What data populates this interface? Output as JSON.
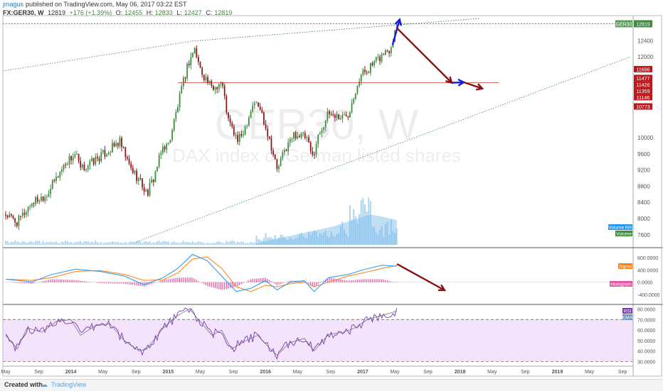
{
  "header": {
    "author": "jmagus",
    "published_text": "published on TradingView.com, May 06, 2017 03:22 EST",
    "symbol": "FX:GER30, W",
    "last": "12819",
    "change": "+176 (+1.39%)",
    "o_label": "O:",
    "o": "12455",
    "h_label": "H:",
    "h": "12833",
    "l_label": "L:",
    "l": "12427",
    "c_label": "C:",
    "c": "12819"
  },
  "watermark": {
    "title": "GER30, W",
    "subtitle": "DAX index of German listed shares"
  },
  "footer": {
    "created_with": "Created with",
    "brand": "TradingView"
  },
  "colors": {
    "up": "#3d8c40",
    "down": "#8b1a1a",
    "macd": "#2196f3",
    "signal": "#ff7f0e",
    "histogram": "#e056a0",
    "rsi": "#7b3ab8",
    "arrow_red": "#8b1010",
    "arrow_blue": "#1a1ae6",
    "volume": "#74b9e8",
    "rsi_band": "#f3e4fb"
  },
  "chart_data": [
    {
      "type": "candlestick",
      "name": "price",
      "time_axis": [
        "May",
        "Sep",
        "2014",
        "May",
        "Sep",
        "2015",
        "May",
        "Sep",
        "2016",
        "May",
        "Sep",
        "2017",
        "May",
        "Sep",
        "2018",
        "May",
        "Sep",
        "2019",
        "May",
        "Sep"
      ],
      "y_ticks": [
        7600,
        8000,
        8400,
        8800,
        9200,
        9600,
        10000,
        10400,
        10800,
        11200,
        11600,
        12000,
        12400
      ],
      "y_tick_labels": [
        "7600",
        "8000",
        "8400",
        "8800",
        "9200",
        "9600",
        "10000",
        "",
        "",
        "",
        "",
        "12000",
        "12400"
      ],
      "ylim": [
        7350,
        12950
      ],
      "close_path": [
        [
          2013.33,
          8100
        ],
        [
          2013.45,
          7900
        ],
        [
          2013.6,
          8400
        ],
        [
          2013.75,
          8600
        ],
        [
          2013.95,
          9400
        ],
        [
          2014.05,
          9600
        ],
        [
          2014.1,
          9200
        ],
        [
          2014.22,
          9400
        ],
        [
          2014.4,
          9700
        ],
        [
          2014.5,
          9900
        ],
        [
          2014.6,
          9300
        ],
        [
          2014.72,
          8900
        ],
        [
          2014.78,
          8600
        ],
        [
          2014.85,
          9000
        ],
        [
          2014.95,
          9800
        ],
        [
          2015.0,
          9800
        ],
        [
          2015.1,
          10800
        ],
        [
          2015.2,
          11800
        ],
        [
          2015.27,
          12200
        ],
        [
          2015.33,
          11700
        ],
        [
          2015.45,
          11200
        ],
        [
          2015.55,
          11400
        ],
        [
          2015.62,
          10400
        ],
        [
          2015.72,
          9900
        ],
        [
          2015.78,
          10200
        ],
        [
          2015.88,
          10900
        ],
        [
          2015.95,
          10700
        ],
        [
          2016.05,
          9900
        ],
        [
          2016.12,
          9200
        ],
        [
          2016.2,
          9700
        ],
        [
          2016.3,
          10100
        ],
        [
          2016.42,
          10000
        ],
        [
          2016.48,
          9500
        ],
        [
          2016.55,
          10100
        ],
        [
          2016.65,
          10600
        ],
        [
          2016.78,
          10500
        ],
        [
          2016.85,
          10600
        ],
        [
          2016.95,
          11400
        ],
        [
          2017.0,
          11600
        ],
        [
          2017.15,
          11900
        ],
        [
          2017.22,
          12100
        ],
        [
          2017.28,
          12200
        ],
        [
          2017.35,
          12819
        ]
      ],
      "current_price_label": "GER30",
      "current_price": "12819",
      "level_labels": [
        "11696",
        "11477",
        "11426",
        "11359",
        "11146",
        "10773"
      ],
      "level_values": [
        11696,
        11477,
        11426,
        11359,
        11146,
        10773
      ],
      "horizontal_line": 11359,
      "volume_legend": [
        "Volume MA",
        "Volume"
      ]
    },
    {
      "type": "line",
      "name": "macd",
      "y_ticks": [
        800,
        400,
        0,
        -400
      ],
      "y_tick_labels": [
        "800.0000",
        "400.0000",
        "0.0000",
        "-400.0000"
      ],
      "ylim": [
        -650,
        1050
      ],
      "legend": [
        "Signal",
        "Histogram"
      ],
      "macd": [
        [
          2013.33,
          100
        ],
        [
          2013.6,
          10
        ],
        [
          2013.8,
          250
        ],
        [
          2014.05,
          420
        ],
        [
          2014.3,
          350
        ],
        [
          2014.55,
          200
        ],
        [
          2014.75,
          -80
        ],
        [
          2014.95,
          150
        ],
        [
          2015.1,
          450
        ],
        [
          2015.25,
          900
        ],
        [
          2015.4,
          700
        ],
        [
          2015.55,
          200
        ],
        [
          2015.7,
          -300
        ],
        [
          2015.85,
          -200
        ],
        [
          2016.0,
          50
        ],
        [
          2016.12,
          -250
        ],
        [
          2016.25,
          0
        ],
        [
          2016.4,
          50
        ],
        [
          2016.5,
          -300
        ],
        [
          2016.65,
          150
        ],
        [
          2016.85,
          250
        ],
        [
          2017.0,
          400
        ],
        [
          2017.2,
          550
        ],
        [
          2017.35,
          520
        ]
      ],
      "signal": [
        [
          2013.33,
          100
        ],
        [
          2013.6,
          60
        ],
        [
          2013.8,
          150
        ],
        [
          2014.05,
          350
        ],
        [
          2014.3,
          380
        ],
        [
          2014.55,
          250
        ],
        [
          2014.75,
          60
        ],
        [
          2014.95,
          80
        ],
        [
          2015.1,
          300
        ],
        [
          2015.25,
          750
        ],
        [
          2015.4,
          820
        ],
        [
          2015.55,
          450
        ],
        [
          2015.7,
          -150
        ],
        [
          2015.85,
          -300
        ],
        [
          2016.0,
          -100
        ],
        [
          2016.12,
          -150
        ],
        [
          2016.25,
          -50
        ],
        [
          2016.4,
          0
        ],
        [
          2016.5,
          -150
        ],
        [
          2016.65,
          0
        ],
        [
          2016.85,
          200
        ],
        [
          2017.0,
          300
        ],
        [
          2017.2,
          450
        ],
        [
          2017.35,
          540
        ]
      ]
    },
    {
      "type": "line",
      "name": "rsi",
      "y_ticks": [
        80,
        70,
        60,
        50,
        40,
        30
      ],
      "y_tick_labels": [
        "80.0000",
        "70.0000",
        "60.0000",
        "50.0000",
        "40.0000",
        "30.0000"
      ],
      "ylim": [
        27,
        83
      ],
      "bands": [
        30,
        70
      ],
      "legend": [
        "RSI",
        "EMA"
      ],
      "rsi": [
        [
          2013.33,
          55
        ],
        [
          2013.45,
          42
        ],
        [
          2013.55,
          62
        ],
        [
          2013.7,
          58
        ],
        [
          2013.85,
          68
        ],
        [
          2014.0,
          70
        ],
        [
          2014.1,
          55
        ],
        [
          2014.25,
          64
        ],
        [
          2014.4,
          66
        ],
        [
          2014.55,
          50
        ],
        [
          2014.7,
          40
        ],
        [
          2014.78,
          42
        ],
        [
          2014.95,
          62
        ],
        [
          2015.1,
          74
        ],
        [
          2015.22,
          80
        ],
        [
          2015.33,
          68
        ],
        [
          2015.45,
          55
        ],
        [
          2015.55,
          60
        ],
        [
          2015.65,
          42
        ],
        [
          2015.8,
          50
        ],
        [
          2015.92,
          55
        ],
        [
          2016.05,
          42
        ],
        [
          2016.12,
          36
        ],
        [
          2016.25,
          48
        ],
        [
          2016.4,
          52
        ],
        [
          2016.5,
          40
        ],
        [
          2016.65,
          56
        ],
        [
          2016.8,
          58
        ],
        [
          2016.92,
          62
        ],
        [
          2017.05,
          70
        ],
        [
          2017.2,
          74
        ],
        [
          2017.35,
          78
        ]
      ]
    }
  ]
}
